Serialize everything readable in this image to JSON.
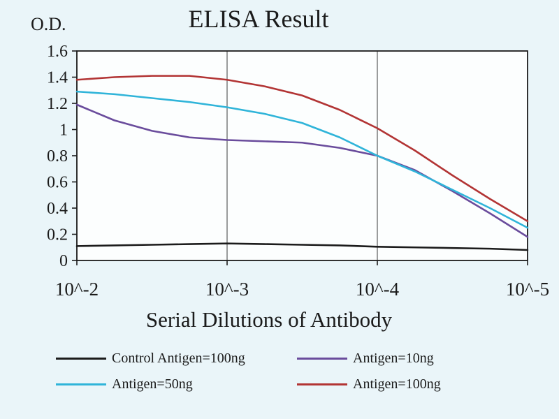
{
  "chart_data": {
    "type": "line",
    "title": "ELISA Result",
    "ylabel": "O.D.",
    "xlabel": "Serial Dilutions of Antibody",
    "x_tick_labels": [
      "10^-2",
      "10^-3",
      "10^-4",
      "10^-5"
    ],
    "y_tick_labels": [
      "0",
      "0.2",
      "0.4",
      "0.6",
      "0.8",
      "1",
      "1.2",
      "1.4",
      "1.6"
    ],
    "xlim": [
      0,
      3
    ],
    "ylim": [
      0,
      1.6
    ],
    "grid": "vertical-gridlines-only",
    "legend_position": "bottom",
    "x": [
      0,
      0.25,
      0.5,
      0.75,
      1,
      1.25,
      1.5,
      1.75,
      2,
      2.25,
      2.5,
      2.75,
      3
    ],
    "series": [
      {
        "name": "Control Antigen=100ng",
        "color": "#1b1b1b",
        "values": [
          0.11,
          0.115,
          0.12,
          0.125,
          0.13,
          0.125,
          0.12,
          0.115,
          0.105,
          0.1,
          0.095,
          0.09,
          0.08
        ]
      },
      {
        "name": "Antigen=10ng",
        "color": "#6a4c9c",
        "values": [
          1.19,
          1.07,
          0.99,
          0.94,
          0.92,
          0.91,
          0.9,
          0.86,
          0.8,
          0.69,
          0.53,
          0.36,
          0.18
        ]
      },
      {
        "name": "Antigen=50ng",
        "color": "#2fb4d9",
        "values": [
          1.29,
          1.27,
          1.24,
          1.21,
          1.17,
          1.12,
          1.05,
          0.94,
          0.8,
          0.68,
          0.54,
          0.4,
          0.25
        ]
      },
      {
        "name": "Antigen=100ng",
        "color": "#b23434",
        "values": [
          1.38,
          1.4,
          1.41,
          1.41,
          1.38,
          1.33,
          1.26,
          1.15,
          1.01,
          0.84,
          0.65,
          0.47,
          0.3
        ]
      }
    ]
  },
  "colors": {
    "background": "#eaf5f9",
    "plot_bg": "#fcfefe",
    "axis": "#1b1b1b",
    "gridline": "#5a5a5a"
  }
}
